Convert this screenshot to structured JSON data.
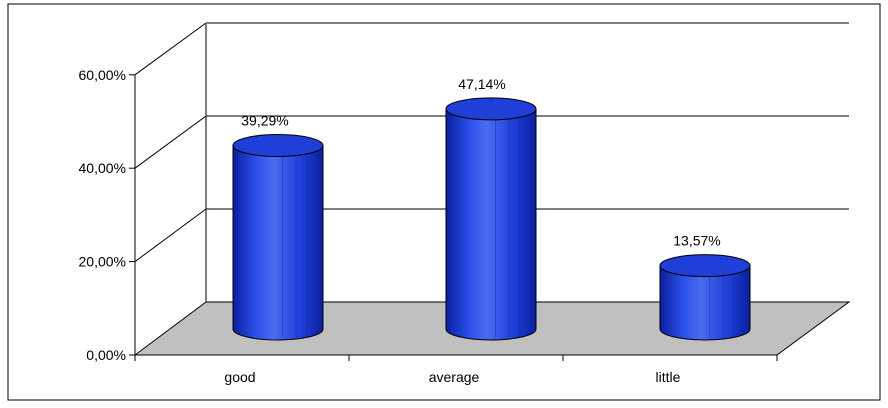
{
  "chart_data": {
    "type": "bar",
    "style": "3d-cylinder",
    "categories": [
      "good",
      "average",
      "little"
    ],
    "values": [
      39.29,
      47.14,
      13.57
    ],
    "data_labels": [
      "39,29%",
      "47,14%",
      "13,57%"
    ],
    "y_ticks": [
      "0,00%",
      "20,00%",
      "40,00%",
      "60,00%"
    ],
    "y_tick_values": [
      0,
      20,
      40,
      60
    ],
    "ylim": [
      0,
      60
    ],
    "grid": true,
    "legend": false,
    "colors": {
      "bar": "#1f3fd8",
      "bar_light": "#4a6cf0",
      "bar_dark": "#0a1f9e",
      "floor": "#c0c0c0",
      "grid": "#000000"
    }
  }
}
